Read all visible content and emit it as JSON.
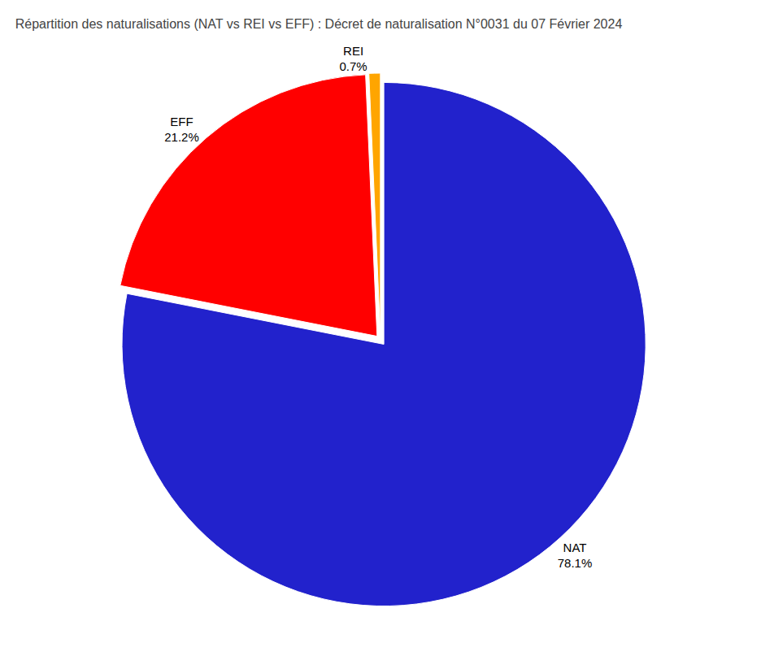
{
  "chart_data": {
    "type": "pie",
    "title": "Répartition des naturalisations (NAT vs REI vs EFF) : Décret de naturalisation N°0031 du 07 Février 2024",
    "categories": [
      "NAT",
      "EFF",
      "REI"
    ],
    "values": [
      78.1,
      21.2,
      0.7
    ],
    "value_labels": [
      "78.1%",
      "21.2%",
      "0.7%"
    ],
    "colors": [
      "#2222CC",
      "#FF0000",
      "#FFA500"
    ],
    "data_labels": true
  }
}
